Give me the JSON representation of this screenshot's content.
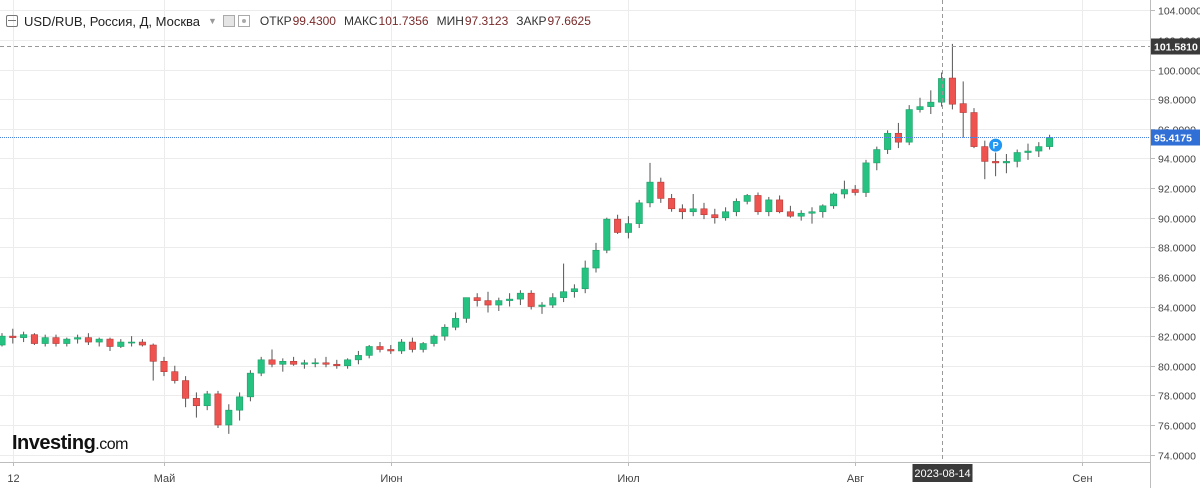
{
  "header": {
    "symbol": "USD/RUB, Россия, Д, Москва",
    "ohlc": [
      {
        "label": "ОТКР",
        "value": "99.4300"
      },
      {
        "label": "МАКС",
        "value": "101.7356"
      },
      {
        "label": "МИН",
        "value": "97.3123"
      },
      {
        "label": "ЗАКР",
        "value": "97.6625"
      }
    ]
  },
  "logo": {
    "main": "Investing",
    "suffix": ".com"
  },
  "colors": {
    "up": "#26c281",
    "down": "#ef5350",
    "grid": "#ececec",
    "price_line": "#4a7fdd"
  },
  "chart_data": {
    "type": "candlestick",
    "ylim": [
      73.5,
      104.7
    ],
    "y_ticks": [
      "104.0000",
      "102.0000",
      "100.0000",
      "98.0000",
      "96.0000",
      "94.0000",
      "92.0000",
      "90.0000",
      "88.0000",
      "86.0000",
      "84.0000",
      "82.0000",
      "80.0000",
      "78.0000",
      "76.0000",
      "74.0000"
    ],
    "x_labels": [
      {
        "index": 1,
        "label": "12"
      },
      {
        "index": 15,
        "label": "Май"
      },
      {
        "index": 36,
        "label": "Июн"
      },
      {
        "index": 58,
        "label": "Июл"
      },
      {
        "index": 79,
        "label": "Авг"
      },
      {
        "index": 100,
        "label": "Сен"
      }
    ],
    "crosshair": {
      "index": 87,
      "date": "2023-08-14",
      "price": "101.5810"
    },
    "current_price": "95.4175",
    "marker": {
      "index": 92,
      "label": "P",
      "value": 94.9
    },
    "candles": [
      [
        81.4,
        82.2,
        81.3,
        82.0
      ],
      [
        82.0,
        82.5,
        81.5,
        81.9
      ],
      [
        81.9,
        82.3,
        81.6,
        82.1
      ],
      [
        82.1,
        82.2,
        81.4,
        81.5
      ],
      [
        81.5,
        82.1,
        81.3,
        81.9
      ],
      [
        81.9,
        82.1,
        81.3,
        81.5
      ],
      [
        81.5,
        81.9,
        81.3,
        81.8
      ],
      [
        81.8,
        82.1,
        81.5,
        81.9
      ],
      [
        81.9,
        82.2,
        81.4,
        81.6
      ],
      [
        81.6,
        81.9,
        81.3,
        81.8
      ],
      [
        81.8,
        81.9,
        81.0,
        81.3
      ],
      [
        81.3,
        81.8,
        81.2,
        81.6
      ],
      [
        81.6,
        82.0,
        81.3,
        81.6
      ],
      [
        81.6,
        81.8,
        81.3,
        81.4
      ],
      [
        81.4,
        81.5,
        79.0,
        80.3
      ],
      [
        80.3,
        80.6,
        79.3,
        79.6
      ],
      [
        79.6,
        80.0,
        78.8,
        79.0
      ],
      [
        79.0,
        79.3,
        77.2,
        77.8
      ],
      [
        77.8,
        78.2,
        76.5,
        77.3
      ],
      [
        77.3,
        78.3,
        77.0,
        78.1
      ],
      [
        78.1,
        78.3,
        75.8,
        76.0
      ],
      [
        76.0,
        77.4,
        75.4,
        77.0
      ],
      [
        77.0,
        78.2,
        76.3,
        77.9
      ],
      [
        77.9,
        79.7,
        77.6,
        79.5
      ],
      [
        79.5,
        80.6,
        79.3,
        80.4
      ],
      [
        80.4,
        81.1,
        79.9,
        80.1
      ],
      [
        80.1,
        80.5,
        79.6,
        80.3
      ],
      [
        80.3,
        80.6,
        80.0,
        80.1
      ],
      [
        80.1,
        80.4,
        79.8,
        80.2
      ],
      [
        80.2,
        80.5,
        79.9,
        80.2
      ],
      [
        80.2,
        80.6,
        79.9,
        80.1
      ],
      [
        80.1,
        80.4,
        79.8,
        80.0
      ],
      [
        80.0,
        80.5,
        79.8,
        80.4
      ],
      [
        80.4,
        81.0,
        80.1,
        80.7
      ],
      [
        80.7,
        81.4,
        80.5,
        81.3
      ],
      [
        81.3,
        81.6,
        80.9,
        81.1
      ],
      [
        81.1,
        81.4,
        80.8,
        81.0
      ],
      [
        81.0,
        81.8,
        80.8,
        81.6
      ],
      [
        81.6,
        81.9,
        80.9,
        81.1
      ],
      [
        81.1,
        81.6,
        80.9,
        81.5
      ],
      [
        81.5,
        82.1,
        81.3,
        82.0
      ],
      [
        82.0,
        82.8,
        81.7,
        82.6
      ],
      [
        82.6,
        83.6,
        82.4,
        83.2
      ],
      [
        83.2,
        84.6,
        82.9,
        84.6
      ],
      [
        84.6,
        84.9,
        84.0,
        84.4
      ],
      [
        84.4,
        85.0,
        83.6,
        84.1
      ],
      [
        84.1,
        84.6,
        83.7,
        84.4
      ],
      [
        84.4,
        84.9,
        84.0,
        84.5
      ],
      [
        84.5,
        85.1,
        84.1,
        84.9
      ],
      [
        84.9,
        85.1,
        83.8,
        84.0
      ],
      [
        84.0,
        84.3,
        83.5,
        84.1
      ],
      [
        84.1,
        84.9,
        83.9,
        84.6
      ],
      [
        84.6,
        86.9,
        84.3,
        85.0
      ],
      [
        85.0,
        85.5,
        84.6,
        85.2
      ],
      [
        85.2,
        87.1,
        84.9,
        86.6
      ],
      [
        86.6,
        88.3,
        86.3,
        87.8
      ],
      [
        87.8,
        90.0,
        87.6,
        89.9
      ],
      [
        89.9,
        90.2,
        88.9,
        89.0
      ],
      [
        89.0,
        90.1,
        88.6,
        89.6
      ],
      [
        89.6,
        91.2,
        89.3,
        91.0
      ],
      [
        91.0,
        93.7,
        90.7,
        92.4
      ],
      [
        92.4,
        92.7,
        91.0,
        91.3
      ],
      [
        91.3,
        91.6,
        90.4,
        90.6
      ],
      [
        90.6,
        90.9,
        89.9,
        90.4
      ],
      [
        90.4,
        91.6,
        90.1,
        90.6
      ],
      [
        90.6,
        91.0,
        89.9,
        90.2
      ],
      [
        90.2,
        90.6,
        89.6,
        90.0
      ],
      [
        90.0,
        90.7,
        89.8,
        90.4
      ],
      [
        90.4,
        91.3,
        90.1,
        91.1
      ],
      [
        91.1,
        91.6,
        90.9,
        91.5
      ],
      [
        91.5,
        91.7,
        90.2,
        90.4
      ],
      [
        90.4,
        91.4,
        90.1,
        91.2
      ],
      [
        91.2,
        91.5,
        90.3,
        90.4
      ],
      [
        90.4,
        90.8,
        90.0,
        90.1
      ],
      [
        90.1,
        90.5,
        89.8,
        90.3
      ],
      [
        90.3,
        90.7,
        89.6,
        90.4
      ],
      [
        90.4,
        90.9,
        90.0,
        90.8
      ],
      [
        90.8,
        91.7,
        90.6,
        91.6
      ],
      [
        91.6,
        92.5,
        91.3,
        91.9
      ],
      [
        91.9,
        92.2,
        91.5,
        91.7
      ],
      [
        91.7,
        93.9,
        91.4,
        93.7
      ],
      [
        93.7,
        94.8,
        93.2,
        94.6
      ],
      [
        94.6,
        95.9,
        94.3,
        95.7
      ],
      [
        95.7,
        96.4,
        94.7,
        95.1
      ],
      [
        95.1,
        97.6,
        94.9,
        97.3
      ],
      [
        97.3,
        98.1,
        97.1,
        97.5
      ],
      [
        97.5,
        98.6,
        97.0,
        97.8
      ],
      [
        97.8,
        99.8,
        97.5,
        99.4
      ],
      [
        99.43,
        101.7356,
        97.3123,
        97.6625
      ],
      [
        97.7,
        99.2,
        95.4,
        97.1
      ],
      [
        97.1,
        97.4,
        94.7,
        94.8
      ],
      [
        94.8,
        95.2,
        92.6,
        93.8
      ],
      [
        93.8,
        94.6,
        92.8,
        93.7
      ],
      [
        93.7,
        94.3,
        93.0,
        93.8
      ],
      [
        93.8,
        94.6,
        93.4,
        94.4
      ],
      [
        94.4,
        95.0,
        93.9,
        94.5
      ],
      [
        94.5,
        95.1,
        94.1,
        94.8
      ],
      [
        94.8,
        95.6,
        94.6,
        95.4175
      ]
    ]
  }
}
